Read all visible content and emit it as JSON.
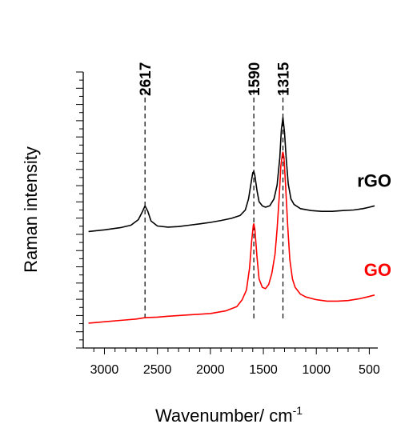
{
  "chart_data": {
    "type": "line",
    "xlabel": "Wavenumber/ cm",
    "xlabel_superscript": "-1",
    "ylabel": "Raman intensity",
    "x_reversed": true,
    "xlim": [
      3200,
      420
    ],
    "ylim": [
      0,
      10
    ],
    "x_ticks": [
      "3000",
      "2500",
      "2000",
      "1500",
      "1000",
      "500"
    ],
    "grid": false,
    "peak_markers": [
      {
        "label": "2617",
        "x": 2617
      },
      {
        "label": "1590",
        "x": 1590
      },
      {
        "label": "1315",
        "x": 1315
      }
    ],
    "series": [
      {
        "name": "rGO",
        "color": "#000000",
        "points": [
          [
            3150,
            4.22
          ],
          [
            3000,
            4.28
          ],
          [
            2850,
            4.36
          ],
          [
            2750,
            4.45
          ],
          [
            2680,
            4.65
          ],
          [
            2640,
            4.95
          ],
          [
            2617,
            5.15
          ],
          [
            2590,
            4.95
          ],
          [
            2560,
            4.6
          ],
          [
            2500,
            4.42
          ],
          [
            2400,
            4.38
          ],
          [
            2300,
            4.4
          ],
          [
            2200,
            4.45
          ],
          [
            2100,
            4.5
          ],
          [
            2000,
            4.55
          ],
          [
            1900,
            4.62
          ],
          [
            1800,
            4.7
          ],
          [
            1720,
            4.8
          ],
          [
            1670,
            5.0
          ],
          [
            1640,
            5.4
          ],
          [
            1615,
            6.0
          ],
          [
            1600,
            6.35
          ],
          [
            1590,
            6.4
          ],
          [
            1580,
            6.25
          ],
          [
            1560,
            5.7
          ],
          [
            1540,
            5.3
          ],
          [
            1510,
            5.15
          ],
          [
            1480,
            5.1
          ],
          [
            1440,
            5.15
          ],
          [
            1400,
            5.4
          ],
          [
            1370,
            5.9
          ],
          [
            1345,
            6.9
          ],
          [
            1330,
            7.9
          ],
          [
            1315,
            8.35
          ],
          [
            1300,
            7.8
          ],
          [
            1285,
            6.9
          ],
          [
            1265,
            5.95
          ],
          [
            1240,
            5.4
          ],
          [
            1210,
            5.2
          ],
          [
            1150,
            5.05
          ],
          [
            1050,
            4.98
          ],
          [
            950,
            4.95
          ],
          [
            850,
            4.95
          ],
          [
            750,
            4.98
          ],
          [
            650,
            5.0
          ],
          [
            560,
            5.05
          ],
          [
            500,
            5.1
          ],
          [
            450,
            5.15
          ]
        ]
      },
      {
        "name": "GO",
        "color": "#ff0000",
        "points": [
          [
            3150,
            0.9
          ],
          [
            3000,
            0.95
          ],
          [
            2850,
            1.0
          ],
          [
            2700,
            1.05
          ],
          [
            2617,
            1.1
          ],
          [
            2500,
            1.12
          ],
          [
            2400,
            1.15
          ],
          [
            2200,
            1.2
          ],
          [
            2000,
            1.25
          ],
          [
            1850,
            1.35
          ],
          [
            1750,
            1.5
          ],
          [
            1700,
            1.75
          ],
          [
            1660,
            2.1
          ],
          [
            1630,
            2.9
          ],
          [
            1610,
            3.9
          ],
          [
            1595,
            4.45
          ],
          [
            1590,
            4.5
          ],
          [
            1580,
            4.3
          ],
          [
            1560,
            3.3
          ],
          [
            1540,
            2.5
          ],
          [
            1510,
            2.2
          ],
          [
            1480,
            2.15
          ],
          [
            1450,
            2.3
          ],
          [
            1420,
            2.7
          ],
          [
            1390,
            3.4
          ],
          [
            1370,
            4.3
          ],
          [
            1350,
            5.5
          ],
          [
            1335,
            6.6
          ],
          [
            1320,
            7.05
          ],
          [
            1315,
            7.1
          ],
          [
            1305,
            6.9
          ],
          [
            1290,
            5.9
          ],
          [
            1270,
            4.4
          ],
          [
            1250,
            3.2
          ],
          [
            1225,
            2.5
          ],
          [
            1200,
            2.2
          ],
          [
            1150,
            1.95
          ],
          [
            1100,
            1.85
          ],
          [
            1000,
            1.75
          ],
          [
            900,
            1.7
          ],
          [
            800,
            1.7
          ],
          [
            700,
            1.72
          ],
          [
            600,
            1.78
          ],
          [
            520,
            1.85
          ],
          [
            450,
            1.92
          ]
        ]
      }
    ]
  }
}
